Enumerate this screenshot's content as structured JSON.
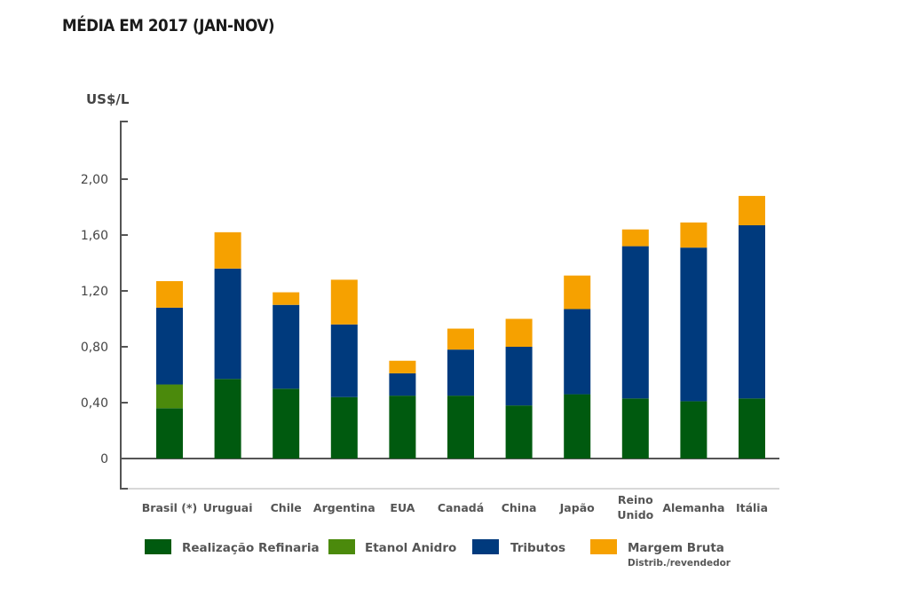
{
  "chart_data": {
    "type": "bar",
    "stacked": true,
    "title": "MÉDIA EM 2017 (JAN-NOV)",
    "ylabel": "US$/L",
    "xlabel": "",
    "ylim": [
      0,
      2.2
    ],
    "yticks": [
      0,
      0.4,
      0.8,
      1.2,
      1.6,
      2.0
    ],
    "ytick_labels": [
      "0",
      "0,40",
      "0,80",
      "1,20",
      "1,60",
      "2,00"
    ],
    "grid": false,
    "legend_position": "bottom",
    "categories": [
      "Brasil (*)",
      "Uruguai",
      "Chile",
      "Argentina",
      "EUA",
      "Canadá",
      "China",
      "Japão",
      "Reino Unido",
      "Alemanha",
      "Itália"
    ],
    "category_lines": [
      [
        "Brasil (*)"
      ],
      [
        "Uruguai"
      ],
      [
        "Chile"
      ],
      [
        "Argentina"
      ],
      [
        "EUA"
      ],
      [
        "Canadá"
      ],
      [
        "China"
      ],
      [
        "Japão"
      ],
      [
        "Reino",
        "Unido"
      ],
      [
        "Alemanha"
      ],
      [
        "Itália"
      ]
    ],
    "series": [
      {
        "name": "Realização Refinaria",
        "sublabel": "",
        "color": "#005a0f",
        "values": [
          0.36,
          0.57,
          0.5,
          0.44,
          0.45,
          0.45,
          0.38,
          0.46,
          0.43,
          0.41,
          0.43
        ]
      },
      {
        "name": "Etanol Anidro",
        "sublabel": "",
        "color": "#4b8a0c",
        "values": [
          0.17,
          0,
          0,
          0,
          0,
          0,
          0,
          0,
          0,
          0,
          0
        ]
      },
      {
        "name": "Tributos",
        "sublabel": "",
        "color": "#003a7d",
        "values": [
          0.55,
          0.79,
          0.6,
          0.52,
          0.16,
          0.33,
          0.42,
          0.61,
          1.09,
          1.1,
          1.24
        ]
      },
      {
        "name": "Margem Bruta",
        "sublabel": "Distrib./revendedor",
        "color": "#f6a100",
        "values": [
          0.19,
          0.26,
          0.09,
          0.32,
          0.09,
          0.15,
          0.2,
          0.24,
          0.12,
          0.18,
          0.21
        ]
      }
    ]
  }
}
